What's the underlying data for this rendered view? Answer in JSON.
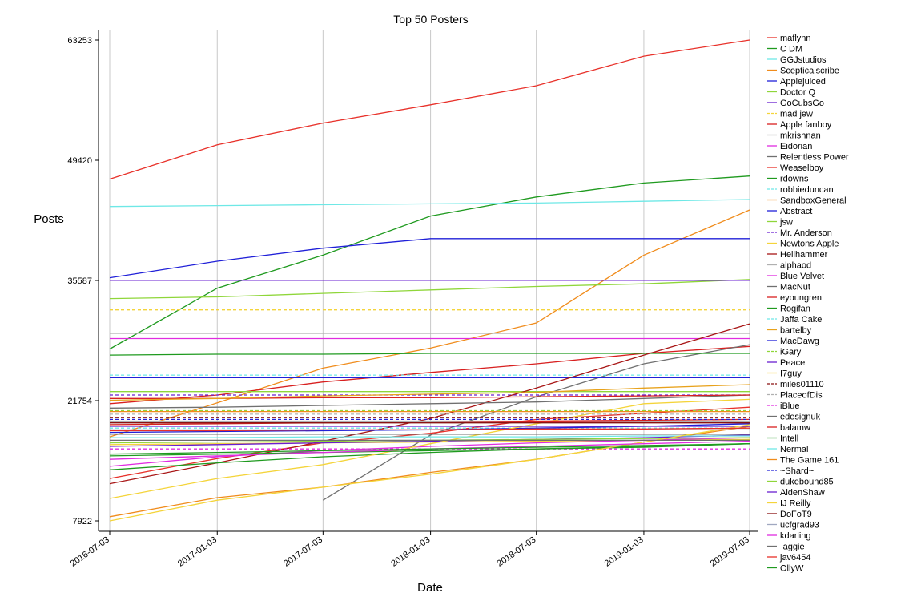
{
  "chart_data": {
    "type": "line",
    "title": "Top 50 Posters",
    "xlabel": "Date",
    "ylabel": "Posts",
    "x": [
      "2016-07-03",
      "2017-01-03",
      "2017-07-03",
      "2018-01-03",
      "2018-07-03",
      "2019-01-03",
      "2019-07-03"
    ],
    "xlim": [
      "2016-07-03",
      "2019-07-03"
    ],
    "y_ticks": [
      7922,
      21754,
      35587,
      49420,
      63253
    ],
    "ylim": [
      7922,
      63253
    ],
    "grid": "vertical",
    "legend_position": "right",
    "series": [
      {
        "name": "maflynn",
        "color": "#e8312a",
        "dash": false,
        "values": [
          47250,
          51200,
          53700,
          55800,
          58000,
          61400,
          63253
        ]
      },
      {
        "name": "C DM",
        "color": "#1f9a1f",
        "dash": false,
        "values": [
          27700,
          34700,
          38500,
          43000,
          45200,
          46800,
          47600
        ]
      },
      {
        "name": "GGJstudios",
        "color": "#6ee8e6",
        "dash": false,
        "values": [
          44100,
          44200,
          44300,
          44400,
          44500,
          44700,
          44900
        ]
      },
      {
        "name": "Scepticalscribe",
        "color": "#f08c1c",
        "dash": false,
        "values": [
          17600,
          21500,
          25500,
          27800,
          30700,
          38500,
          43700
        ]
      },
      {
        "name": "Applejuiced",
        "color": "#2020d8",
        "dash": false,
        "values": [
          35900,
          37800,
          39300,
          40400,
          40400,
          40400,
          40400
        ]
      },
      {
        "name": "Doctor Q",
        "color": "#8fd63a",
        "dash": false,
        "values": [
          33500,
          33700,
          34100,
          34500,
          34900,
          35200,
          35700
        ]
      },
      {
        "name": "GoCubsGo",
        "color": "#6a1fd0",
        "dash": false,
        "values": [
          35600,
          35600,
          35600,
          35600,
          35600,
          35600,
          35600
        ]
      },
      {
        "name": "mad jew",
        "color": "#f4d43a",
        "dash": true,
        "values": [
          32200,
          32200,
          32200,
          32200,
          32200,
          32200,
          32200
        ]
      },
      {
        "name": "Apple fanboy",
        "color": "#d82020",
        "dash": false,
        "values": [
          21400,
          22400,
          23900,
          25000,
          26000,
          27200,
          28000
        ]
      },
      {
        "name": "mkrishnan",
        "color": "#b0b0b0",
        "dash": false,
        "values": [
          29500,
          29500,
          29500,
          29500,
          29500,
          29500,
          29500
        ]
      },
      {
        "name": "Eidorian",
        "color": "#e02ce0",
        "dash": false,
        "values": [
          28900,
          28900,
          28900,
          28900,
          28900,
          28900,
          28900
        ]
      },
      {
        "name": "Relentless Power",
        "color": "#707070",
        "dash": false,
        "values": [
          null,
          null,
          10300,
          17800,
          22200,
          26000,
          28200
        ]
      },
      {
        "name": "Weaselboy",
        "color": "#e8312a",
        "dash": false,
        "values": [
          12800,
          15100,
          16900,
          18000,
          19600,
          20300,
          21000
        ]
      },
      {
        "name": "rdowns",
        "color": "#1f9a1f",
        "dash": false,
        "values": [
          27000,
          27100,
          27100,
          27200,
          27200,
          27200,
          27200
        ]
      },
      {
        "name": "robbieduncan",
        "color": "#6ee8e6",
        "dash": true,
        "values": [
          24700,
          24700,
          24700,
          24700,
          24700,
          24700,
          24700
        ]
      },
      {
        "name": "SandboxGeneral",
        "color": "#f08c1c",
        "dash": false,
        "values": [
          8400,
          10600,
          11800,
          13500,
          15000,
          17000,
          18800
        ]
      },
      {
        "name": "Abstract",
        "color": "#2020d8",
        "dash": false,
        "values": [
          24400,
          24400,
          24400,
          24400,
          24400,
          24400,
          24400
        ]
      },
      {
        "name": "jsw",
        "color": "#8fd63a",
        "dash": false,
        "values": [
          22800,
          22800,
          22800,
          22800,
          22800,
          22800,
          22800
        ]
      },
      {
        "name": "Mr. Anderson",
        "color": "#6a1fd0",
        "dash": true,
        "values": [
          22400,
          22400,
          22400,
          22400,
          22400,
          22400,
          22400
        ]
      },
      {
        "name": "Newtons Apple",
        "color": "#f4d43a",
        "dash": false,
        "values": [
          16700,
          16800,
          16900,
          17000,
          17100,
          17200,
          17300
        ]
      },
      {
        "name": "Hellhammer",
        "color": "#a81616",
        "dash": false,
        "values": [
          12200,
          14600,
          17100,
          19700,
          23200,
          27000,
          30600
        ]
      },
      {
        "name": "alphaod",
        "color": "#b0b0b0",
        "dash": false,
        "values": [
          19400,
          19400,
          19400,
          19400,
          19400,
          19400,
          19400
        ]
      },
      {
        "name": "Blue Velvet",
        "color": "#e02ce0",
        "dash": false,
        "values": [
          14200,
          15300,
          16000,
          16500,
          16900,
          17200,
          17500
        ]
      },
      {
        "name": "MacNut",
        "color": "#707070",
        "dash": false,
        "values": [
          20900,
          21000,
          21200,
          21400,
          21600,
          22000,
          22400
        ]
      },
      {
        "name": "eyoungren",
        "color": "#d82020",
        "dash": false,
        "values": [
          22000,
          22000,
          22100,
          22100,
          22200,
          22300,
          22400
        ]
      },
      {
        "name": "Rogifan",
        "color": "#1f9a1f",
        "dash": false,
        "values": [
          13800,
          14600,
          15300,
          15800,
          16200,
          16500,
          16800
        ]
      },
      {
        "name": "Jaffa Cake",
        "color": "#6ee8e6",
        "dash": true,
        "values": [
          18600,
          18600,
          18600,
          18600,
          18600,
          18600,
          18600
        ]
      },
      {
        "name": "bartelby",
        "color": "#e8a21c",
        "dash": false,
        "values": [
          21800,
          22000,
          22300,
          22500,
          22700,
          23200,
          23600
        ]
      },
      {
        "name": "MacDawg",
        "color": "#2020d8",
        "dash": false,
        "values": [
          18100,
          18200,
          18300,
          18400,
          18600,
          18800,
          19100
        ]
      },
      {
        "name": "iGary",
        "color": "#8fd63a",
        "dash": true,
        "values": [
          20600,
          20600,
          20600,
          20600,
          20600,
          20600,
          20600
        ]
      },
      {
        "name": "Peace",
        "color": "#6a1fd0",
        "dash": false,
        "values": [
          16500,
          16700,
          16900,
          17100,
          17300,
          17500,
          17800
        ]
      },
      {
        "name": "I7guy",
        "color": "#f4d43a",
        "dash": false,
        "values": [
          10500,
          12800,
          14400,
          16800,
          19100,
          21400,
          21900
        ]
      },
      {
        "name": "miles01110",
        "color": "#8a1212",
        "dash": true,
        "values": [
          19800,
          19800,
          19800,
          19800,
          19800,
          19800,
          19800
        ]
      },
      {
        "name": "PlaceofDis",
        "color": "#b0b0b0",
        "dash": true,
        "values": [
          20200,
          20200,
          20200,
          20200,
          20200,
          20200,
          20200
        ]
      },
      {
        "name": "iBlue",
        "color": "#e02ce0",
        "dash": true,
        "values": [
          16200,
          16200,
          16200,
          16200,
          16200,
          16200,
          16200
        ]
      },
      {
        "name": "edesignuk",
        "color": "#707070",
        "dash": false,
        "values": [
          17900,
          17900,
          17900,
          17900,
          17900,
          17900,
          17900
        ]
      },
      {
        "name": "balamw",
        "color": "#d82020",
        "dash": false,
        "values": [
          19000,
          19100,
          19200,
          19300,
          19400,
          19500,
          19600
        ]
      },
      {
        "name": "Intell",
        "color": "#1f9a1f",
        "dash": false,
        "values": [
          15400,
          15600,
          15800,
          16000,
          16200,
          16400,
          16800
        ]
      },
      {
        "name": "Nermal",
        "color": "#6ee8e6",
        "dash": false,
        "values": [
          17500,
          17500,
          17600,
          17600,
          17600,
          17700,
          17700
        ]
      },
      {
        "name": "The Game 161",
        "color": "#f08c1c",
        "dash": false,
        "values": [
          20500,
          20500,
          20500,
          20500,
          20500,
          20500,
          20500
        ]
      },
      {
        "name": "~Shard~",
        "color": "#2020d8",
        "dash": true,
        "values": [
          19600,
          19600,
          19600,
          19600,
          19600,
          19600,
          19600
        ]
      },
      {
        "name": "dukebound85",
        "color": "#8fd63a",
        "dash": false,
        "values": [
          16900,
          17000,
          17100,
          17200,
          17300,
          17400,
          17500
        ]
      },
      {
        "name": "AidenShaw",
        "color": "#6a1fd0",
        "dash": false,
        "values": [
          18800,
          18800,
          18800,
          18800,
          18800,
          18800,
          18800
        ]
      },
      {
        "name": "IJ Reilly",
        "color": "#f4d43a",
        "dash": false,
        "values": [
          7922,
          10300,
          11800,
          13300,
          15000,
          17000,
          19000
        ]
      },
      {
        "name": "DoFoT9",
        "color": "#8a1212",
        "dash": false,
        "values": [
          19200,
          19200,
          19200,
          19200,
          19200,
          19200,
          19200
        ]
      },
      {
        "name": "ucfgrad93",
        "color": "#a0a8c0",
        "dash": false,
        "values": [
          18400,
          18400,
          18400,
          18400,
          18400,
          18400,
          18400
        ]
      },
      {
        "name": "kdarling",
        "color": "#e02ce0",
        "dash": false,
        "values": [
          15000,
          15400,
          15800,
          16200,
          16500,
          16800,
          17100
        ]
      },
      {
        "name": "-aggie-",
        "color": "#707070",
        "dash": false,
        "values": [
          17200,
          17200,
          17200,
          17200,
          17200,
          17200,
          17200
        ]
      },
      {
        "name": "jav6454",
        "color": "#e8312a",
        "dash": false,
        "values": [
          18300,
          18300,
          18400,
          18400,
          18500,
          18500,
          18600
        ]
      },
      {
        "name": "OllyW",
        "color": "#1f9a1f",
        "dash": false,
        "values": [
          15600,
          15800,
          16000,
          16200,
          16400,
          16600,
          16800
        ]
      }
    ]
  }
}
